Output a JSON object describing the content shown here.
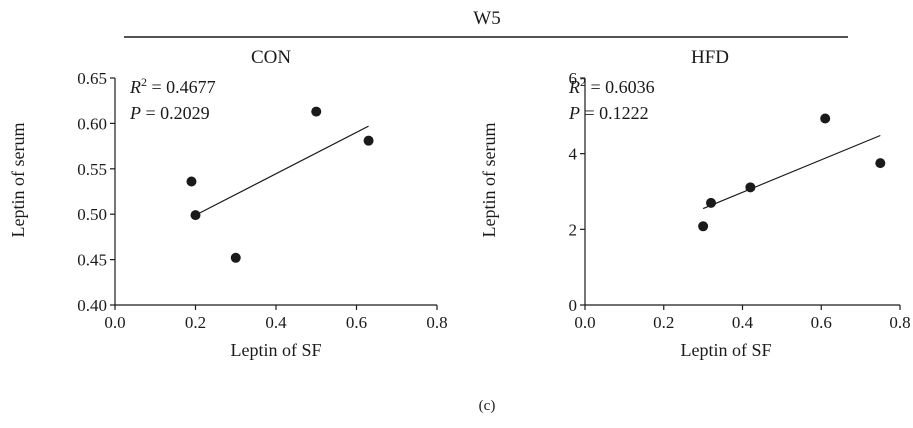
{
  "figure": {
    "group_title": "W5",
    "caption": "(c)"
  },
  "chart_data": [
    {
      "type": "scatter",
      "title": "CON",
      "xlabel": "Leptin of SF",
      "ylabel": "Leptin of serum",
      "xlim": [
        0.0,
        0.8
      ],
      "ylim": [
        0.4,
        0.65
      ],
      "xticks": [
        "0.0",
        "0.2",
        "0.4",
        "0.6",
        "0.8"
      ],
      "yticks": [
        "0.40",
        "0.45",
        "0.50",
        "0.55",
        "0.60",
        "0.65"
      ],
      "points": [
        {
          "x": 0.19,
          "y": 0.536
        },
        {
          "x": 0.2,
          "y": 0.499
        },
        {
          "x": 0.3,
          "y": 0.452
        },
        {
          "x": 0.5,
          "y": 0.613
        },
        {
          "x": 0.63,
          "y": 0.581
        }
      ],
      "fit_line": {
        "x": [
          0.2,
          0.63
        ],
        "y": [
          0.499,
          0.597
        ]
      },
      "annotation": {
        "r2_label": "R",
        "r2_value": " = 0.4677",
        "p_label": "P",
        "p_value": " = 0.2029"
      },
      "grid": false,
      "colors": {
        "points": "#1a1a1a",
        "line": "#1a1a1a"
      }
    },
    {
      "type": "scatter",
      "title": "HFD",
      "xlabel": "Leptin of SF",
      "ylabel": "Leptin of serum",
      "xlim": [
        0.0,
        0.8
      ],
      "ylim": [
        0,
        6
      ],
      "xticks": [
        "0.0",
        "0.2",
        "0.4",
        "0.6",
        "0.8"
      ],
      "yticks": [
        "0",
        "2",
        "4",
        "6"
      ],
      "points": [
        {
          "x": 0.3,
          "y": 2.08
        },
        {
          "x": 0.32,
          "y": 2.7
        },
        {
          "x": 0.42,
          "y": 3.11
        },
        {
          "x": 0.61,
          "y": 4.93
        },
        {
          "x": 0.75,
          "y": 3.75
        }
      ],
      "fit_line": {
        "x": [
          0.3,
          0.75
        ],
        "y": [
          2.55,
          4.48
        ]
      },
      "annotation": {
        "r2_label": "R",
        "r2_value": " = 0.6036",
        "p_label": "P",
        "p_value": " = 0.1222"
      },
      "grid": false,
      "colors": {
        "points": "#1a1a1a",
        "line": "#1a1a1a"
      }
    }
  ]
}
